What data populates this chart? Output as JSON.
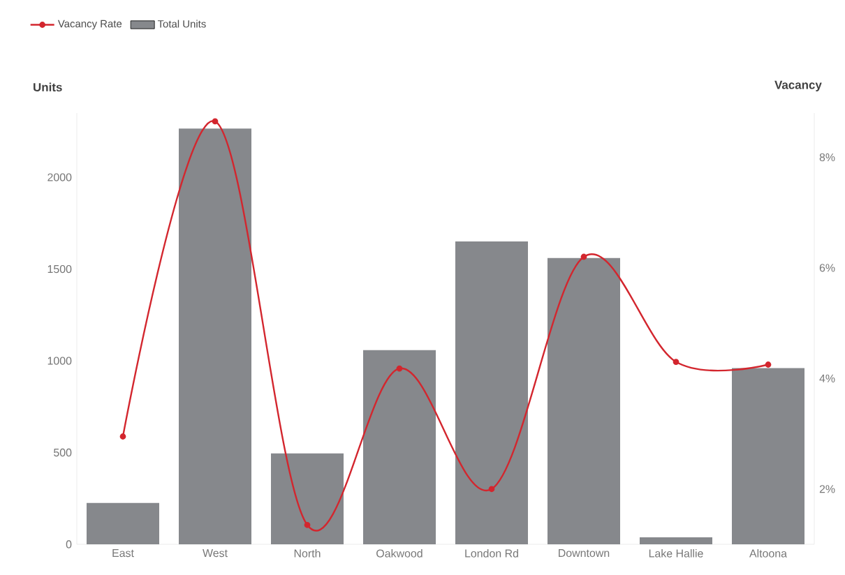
{
  "chart_data": {
    "type": "bar",
    "ylabel": "Units",
    "y2label": "Vacancy",
    "categories": [
      "East",
      "West",
      "North",
      "Oakwood",
      "London Rd",
      "Downtown",
      "Lake Hallie",
      "Altoona"
    ],
    "series": [
      {
        "name": "Total Units",
        "color": "#86888c",
        "values": [
          225,
          2265,
          495,
          1058,
          1650,
          1560,
          38,
          960
        ]
      },
      {
        "name": "Vacancy Rate",
        "type": "line",
        "axis": "y2",
        "color": "#d3262e",
        "marker": "circle",
        "values": [
          2.95,
          8.65,
          1.35,
          4.18,
          2.0,
          6.2,
          4.3,
          4.25
        ]
      }
    ],
    "ylim": [
      0,
      2350
    ],
    "yticks": [
      0,
      500,
      1000,
      1500,
      2000
    ],
    "y2lim": [
      1,
      8.8
    ],
    "y2ticks": [
      {
        "value": 2,
        "label": "2%"
      },
      {
        "value": 4,
        "label": "4%"
      },
      {
        "value": 6,
        "label": "6%"
      },
      {
        "value": 8,
        "label": "8%"
      }
    ],
    "legend": "top left",
    "grid": false
  }
}
